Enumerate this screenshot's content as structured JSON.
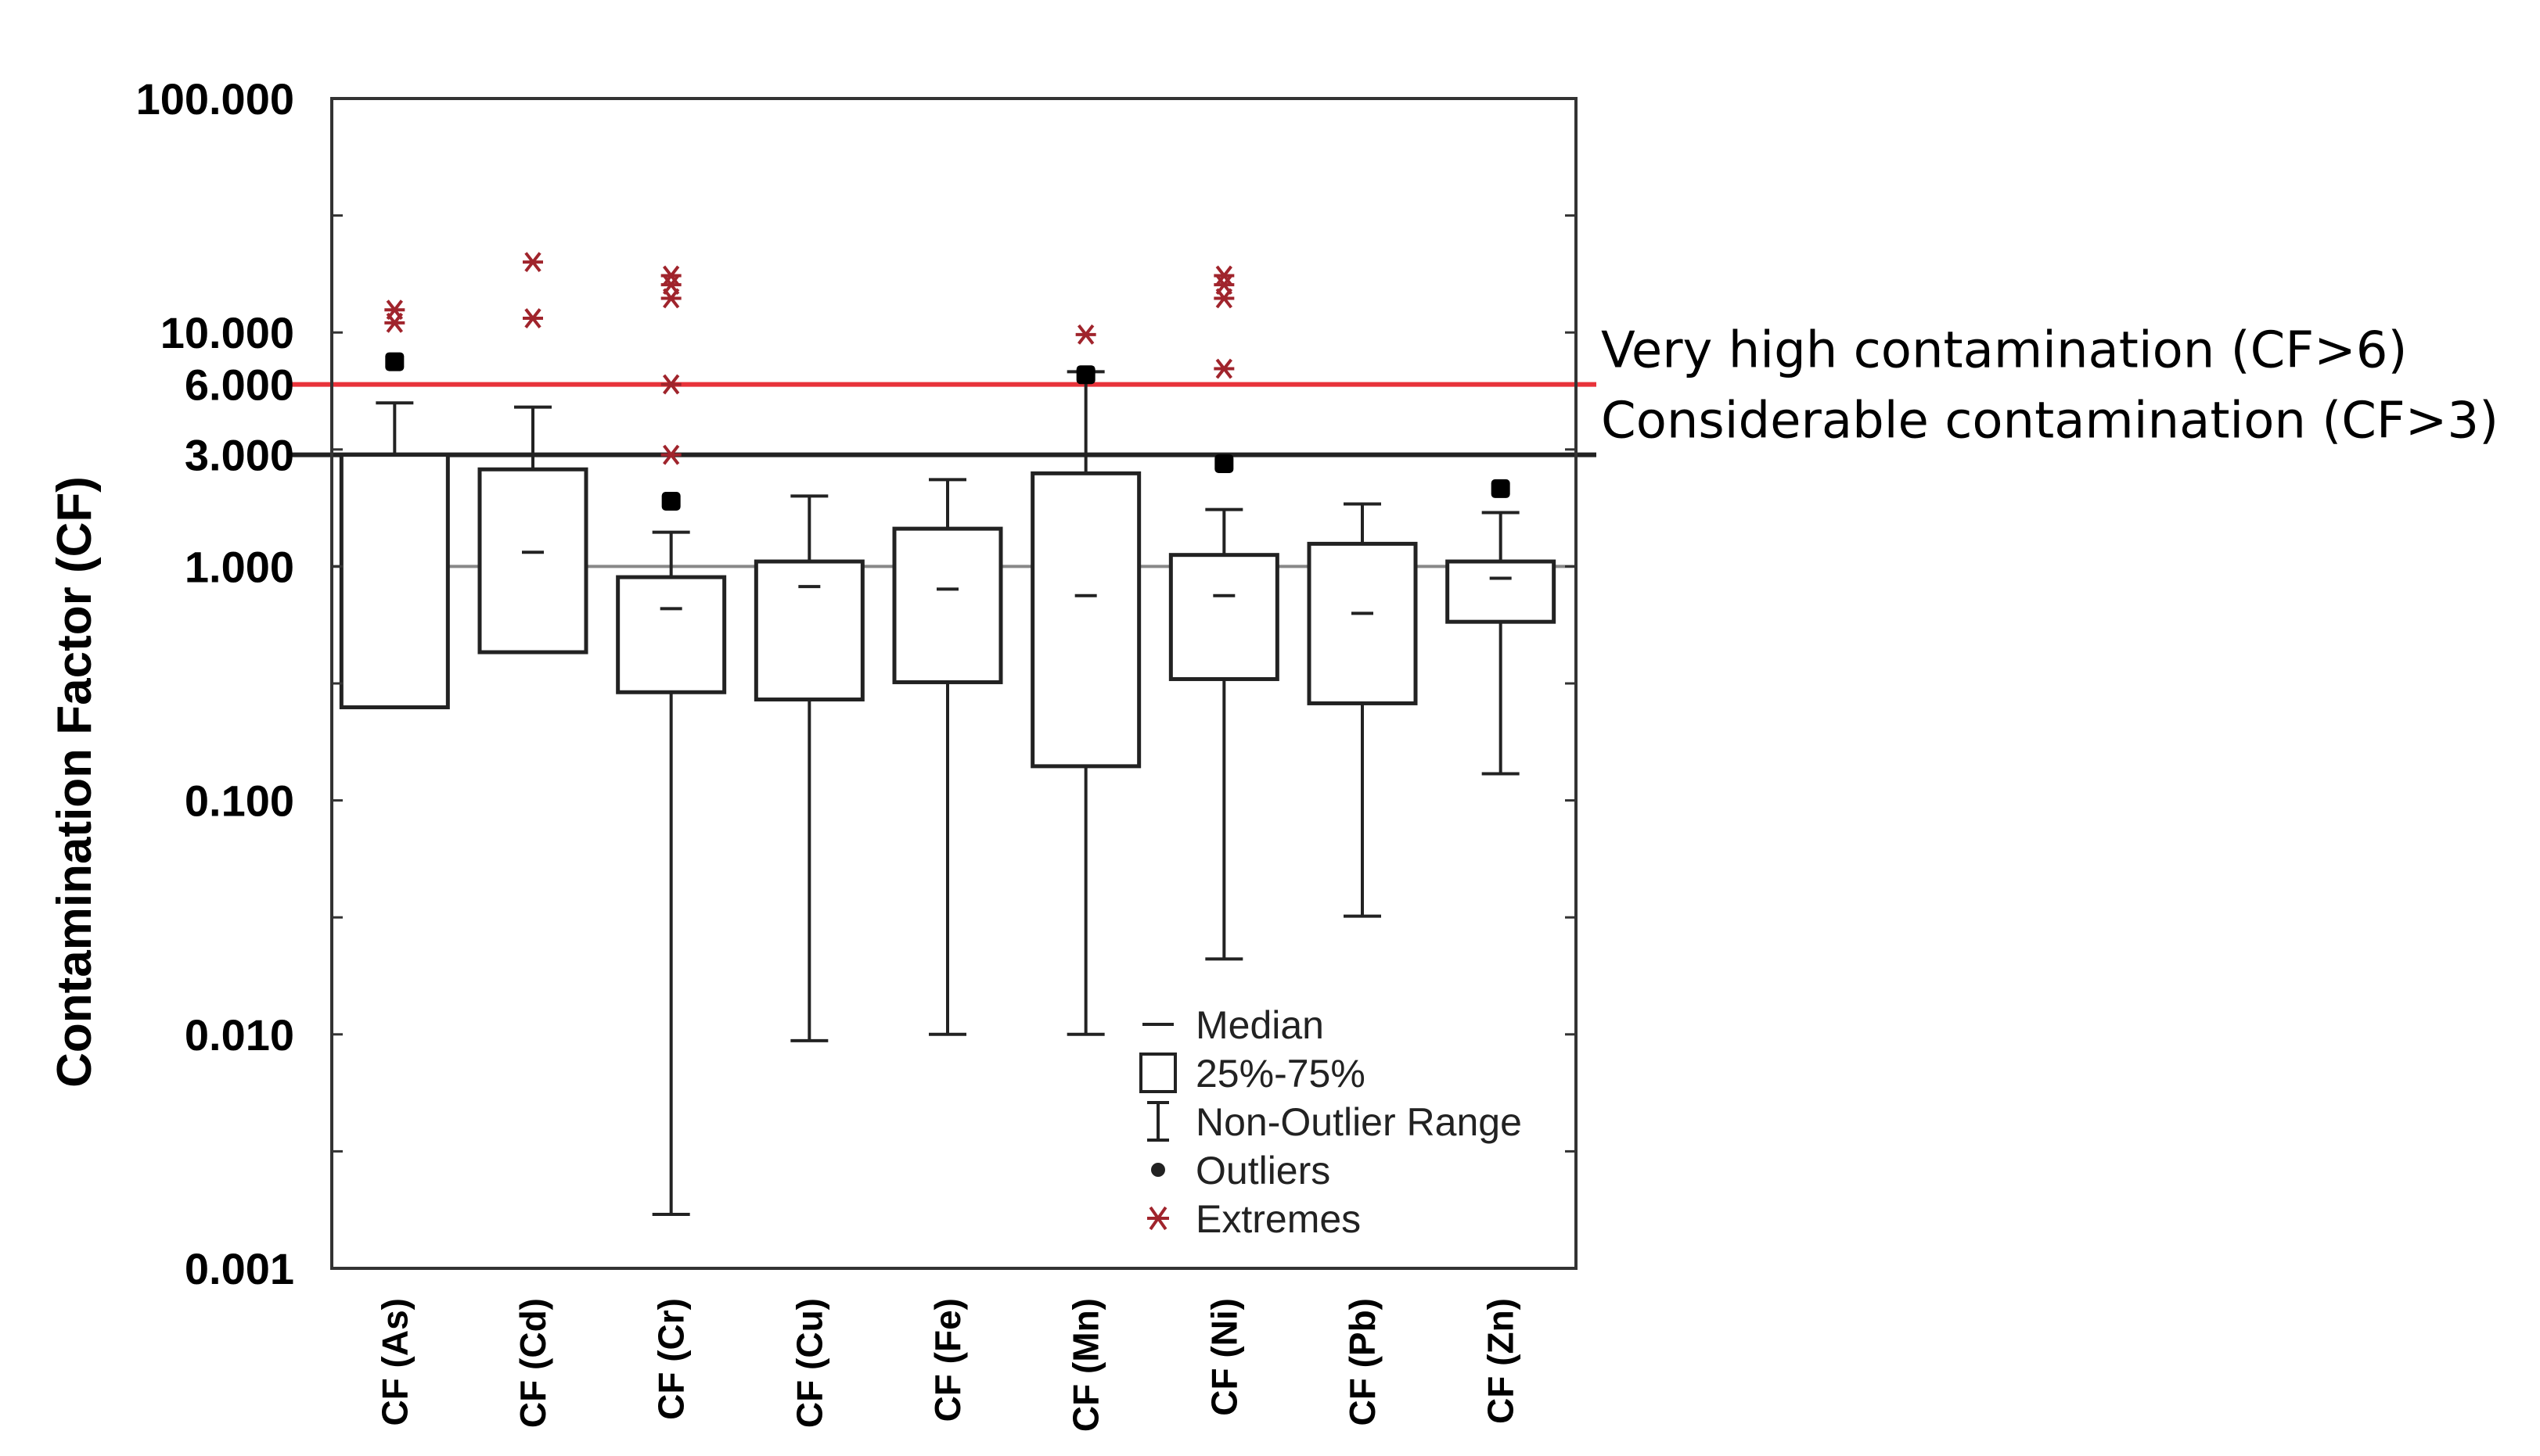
{
  "chart_data": {
    "type": "boxplot",
    "title": "",
    "xlabel": "",
    "ylabel": "Contamination Factor (CF)",
    "yscale": "log",
    "ylim": [
      0.001,
      100
    ],
    "ytick_labels": [
      {
        "value": 100,
        "label": "100.000"
      },
      {
        "value": 10,
        "label": "10.000"
      },
      {
        "value": 6,
        "label": "6.000"
      },
      {
        "value": 3,
        "label": "3.000"
      },
      {
        "value": 1,
        "label": "1.000"
      },
      {
        "value": 0.1,
        "label": "0.100"
      },
      {
        "value": 0.01,
        "label": "0.010"
      },
      {
        "value": 0.001,
        "label": "0.001"
      }
    ],
    "categories": [
      "CF (As)",
      "CF (Cd)",
      "CF (Cr)",
      "CF (Cu)",
      "CF (Fe)",
      "CF (Mn)",
      "CF (Ni)",
      "CF (Pb)",
      "CF (Zn)"
    ],
    "boxes": [
      {
        "name": "CF (As)",
        "whisker_low": 0.25,
        "q1": 0.25,
        "median": null,
        "q3": 3.0,
        "whisker_high": 5.0,
        "outliers": [
          7.5
        ],
        "extremes": [
          11.0,
          12.5
        ]
      },
      {
        "name": "CF (Cd)",
        "whisker_low": 0.43,
        "q1": 0.43,
        "median": 1.15,
        "q3": 2.6,
        "whisker_high": 4.8,
        "outliers": [],
        "extremes": [
          11.5,
          20.0
        ]
      },
      {
        "name": "CF (Cr)",
        "whisker_low": 0.0017,
        "q1": 0.29,
        "median": 0.66,
        "q3": 0.9,
        "whisker_high": 1.4,
        "outliers": [
          1.9
        ],
        "extremes": [
          3.0,
          6.0,
          14.0,
          16.0,
          17.5
        ]
      },
      {
        "name": "CF (Cu)",
        "whisker_low": 0.0094,
        "q1": 0.27,
        "median": 0.82,
        "q3": 1.05,
        "whisker_high": 2.0,
        "outliers": [],
        "extremes": []
      },
      {
        "name": "CF (Fe)",
        "whisker_low": 0.01,
        "q1": 0.32,
        "median": 0.8,
        "q3": 1.45,
        "whisker_high": 2.35,
        "outliers": [],
        "extremes": []
      },
      {
        "name": "CF (Mn)",
        "whisker_low": 0.01,
        "q1": 0.14,
        "median": 0.75,
        "q3": 2.5,
        "whisker_high": 6.8,
        "outliers": [
          6.6
        ],
        "extremes": [
          9.8
        ]
      },
      {
        "name": "CF (Ni)",
        "whisker_low": 0.021,
        "q1": 0.33,
        "median": 0.75,
        "q3": 1.12,
        "whisker_high": 1.75,
        "outliers": [
          2.75
        ],
        "extremes": [
          7.0,
          14.0,
          16.0,
          17.5
        ]
      },
      {
        "name": "CF (Pb)",
        "whisker_low": 0.032,
        "q1": 0.26,
        "median": 0.63,
        "q3": 1.25,
        "whisker_high": 1.85,
        "outliers": [],
        "extremes": []
      },
      {
        "name": "CF (Zn)",
        "whisker_low": 0.13,
        "q1": 0.58,
        "median": 0.89,
        "q3": 1.05,
        "whisker_high": 1.7,
        "outliers": [
          2.15
        ],
        "extremes": []
      }
    ],
    "reference_lines": [
      {
        "value": 6,
        "label": "Very high contamination (CF>6)",
        "color": "#e8333a"
      },
      {
        "value": 3,
        "label": "Considerable contamination (CF>3)",
        "color": "#222222"
      },
      {
        "value": 1,
        "label": "",
        "color": "#888888"
      }
    ],
    "legend": {
      "position": "bottom-right",
      "items": [
        {
          "symbol": "median",
          "label": "Median"
        },
        {
          "symbol": "box",
          "label": "25%-75%"
        },
        {
          "symbol": "whisker",
          "label": "Non-Outlier Range"
        },
        {
          "symbol": "outlier",
          "label": "Outliers"
        },
        {
          "symbol": "extreme",
          "label": "Extremes"
        }
      ]
    },
    "colors": {
      "extreme": "#a0242c",
      "outlier": "#000000",
      "very_high_line": "#e8333a",
      "considerable_line": "#222222",
      "one_line": "#888888"
    }
  }
}
